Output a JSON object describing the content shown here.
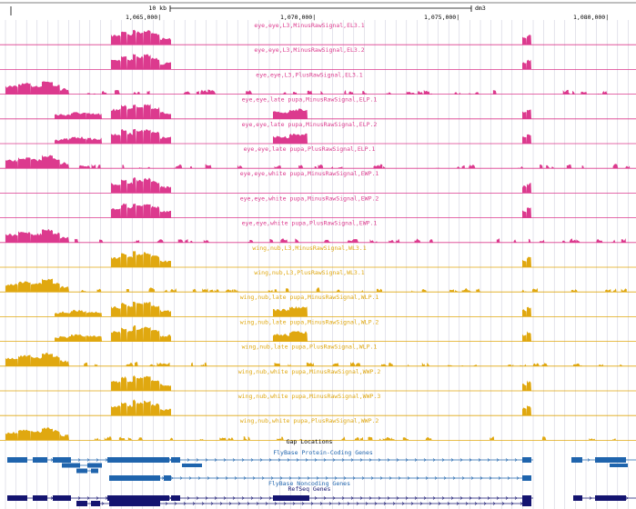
{
  "ruler": {
    "scale_label": "10 kb",
    "assembly": "dm3",
    "positions": [
      "1,065,000|",
      "1,070,000|",
      "1,075,000|",
      "1,080,000|"
    ]
  },
  "colors": {
    "eye": "#dc3a8e",
    "wing": "#e0a810",
    "gene": "#1f64ad",
    "noncoding": "#1f64ad",
    "refseq": "#141470",
    "grid": "#c8c8d8"
  },
  "tracks": [
    {
      "label": "eye,eye,L3,MinusRawSignal,EL3.1",
      "group": "eye",
      "profile": "minus"
    },
    {
      "label": "eye,eye,L3,MinusRawSignal,EL3.2",
      "group": "eye",
      "profile": "minus"
    },
    {
      "label": "eye,eye,L3,PlusRawSignal,EL3.1",
      "group": "eye",
      "profile": "plus"
    },
    {
      "label": "eye,eye,late pupa,MinusRawSignal,ELP.1",
      "group": "eye",
      "profile": "minus_lp"
    },
    {
      "label": "eye,eye,late pupa,MinusRawSignal,ELP.2",
      "group": "eye",
      "profile": "minus_lp"
    },
    {
      "label": "eye,eye,late pupa,PlusRawSignal,ELP.1",
      "group": "eye",
      "profile": "plus"
    },
    {
      "label": "eye,eye,white pupa,MinusRawSignal,EWP.1",
      "group": "eye",
      "profile": "minus"
    },
    {
      "label": "eye,eye,white pupa,MinusRawSignal,EWP.2",
      "group": "eye",
      "profile": "minus"
    },
    {
      "label": "eye,eye,white pupa,PlusRawSignal,EWP.1",
      "group": "eye",
      "profile": "plus"
    },
    {
      "label": "wing,nub,L3,MinusRawSignal,WL3.1",
      "group": "wing",
      "profile": "minus"
    },
    {
      "label": "wing,nub,L3,PlusRawSignal,WL3.1",
      "group": "wing",
      "profile": "plus"
    },
    {
      "label": "wing,nub,late pupa,MinusRawSignal,WLP.1",
      "group": "wing",
      "profile": "minus_lp"
    },
    {
      "label": "wing,nub,late pupa,MinusRawSignal,WLP.2",
      "group": "wing",
      "profile": "minus_lp"
    },
    {
      "label": "wing,nub,late pupa,PlusRawSignal,WLP.1",
      "group": "wing",
      "profile": "plus"
    },
    {
      "label": "wing,nub,white pupa,MinusRawSignal,WWP.2",
      "group": "wing",
      "profile": "minus"
    },
    {
      "label": "wing,nub,white pupa,MinusRawSignal,WWP.3",
      "group": "wing",
      "profile": "minus"
    },
    {
      "label": "wing,nub,white pupa,PlusRawSignal,WWP.2",
      "group": "wing",
      "profile": "plus"
    }
  ],
  "annotation_tracks": {
    "gap": "Gap Locations",
    "flybase_coding": "FlyBase Protein-Coding Genes",
    "flybase_noncoding": "FlyBase Noncoding Genes",
    "refseq": "RefSeq Genes"
  }
}
